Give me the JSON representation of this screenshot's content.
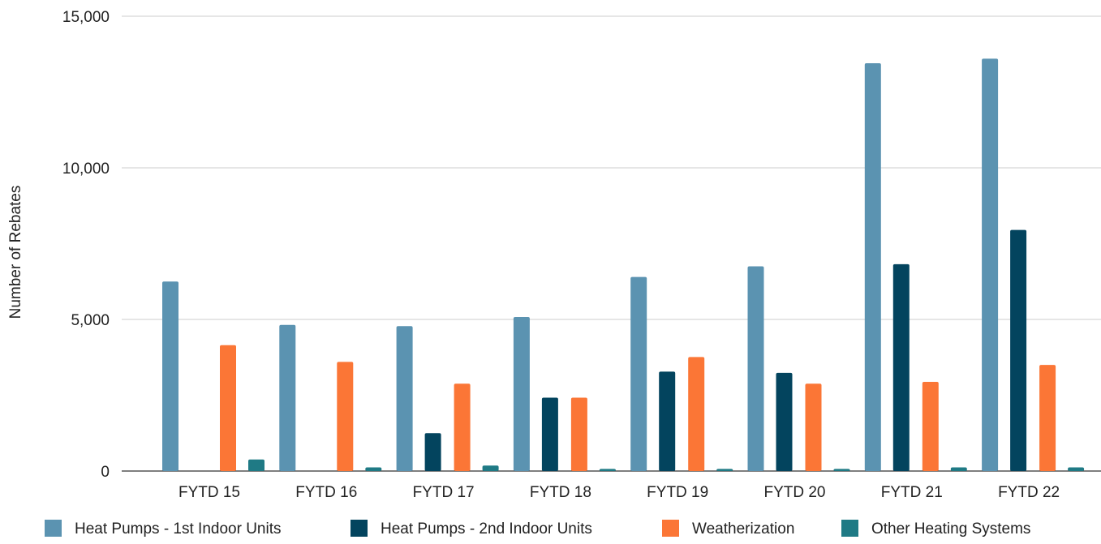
{
  "chart_data": {
    "type": "bar",
    "title": "",
    "xlabel": "",
    "ylabel": "Number of Rebates",
    "ylim": [
      0,
      15000
    ],
    "yticks": [
      0,
      5000,
      10000,
      15000
    ],
    "ytick_labels": [
      "0",
      "5,000",
      "10,000",
      "15,000"
    ],
    "grid": true,
    "legend_position": "bottom",
    "categories": [
      "FYTD 15",
      "FYTD 16",
      "FYTD 17",
      "FYTD 18",
      "FYTD 19",
      "FYTD 20",
      "FYTD 21",
      "FYTD 22"
    ],
    "series": [
      {
        "name": "Heat Pumps - 1st Indoor Units",
        "color": "#5b93b1",
        "values": [
          6250,
          4820,
          4780,
          5080,
          6400,
          6750,
          13450,
          13600
        ]
      },
      {
        "name": "Heat Pumps - 2nd Indoor Units",
        "color": "#03445e",
        "values": [
          0,
          0,
          1250,
          2420,
          3280,
          3240,
          6820,
          7950
        ]
      },
      {
        "name": "Weatherization",
        "color": "#fb7636",
        "values": [
          4150,
          3600,
          2880,
          2420,
          3760,
          2880,
          2940,
          3500
        ]
      },
      {
        "name": "Other Heating Systems",
        "color": "#1f7a85",
        "values": [
          380,
          120,
          180,
          70,
          70,
          70,
          120,
          120
        ]
      }
    ]
  }
}
